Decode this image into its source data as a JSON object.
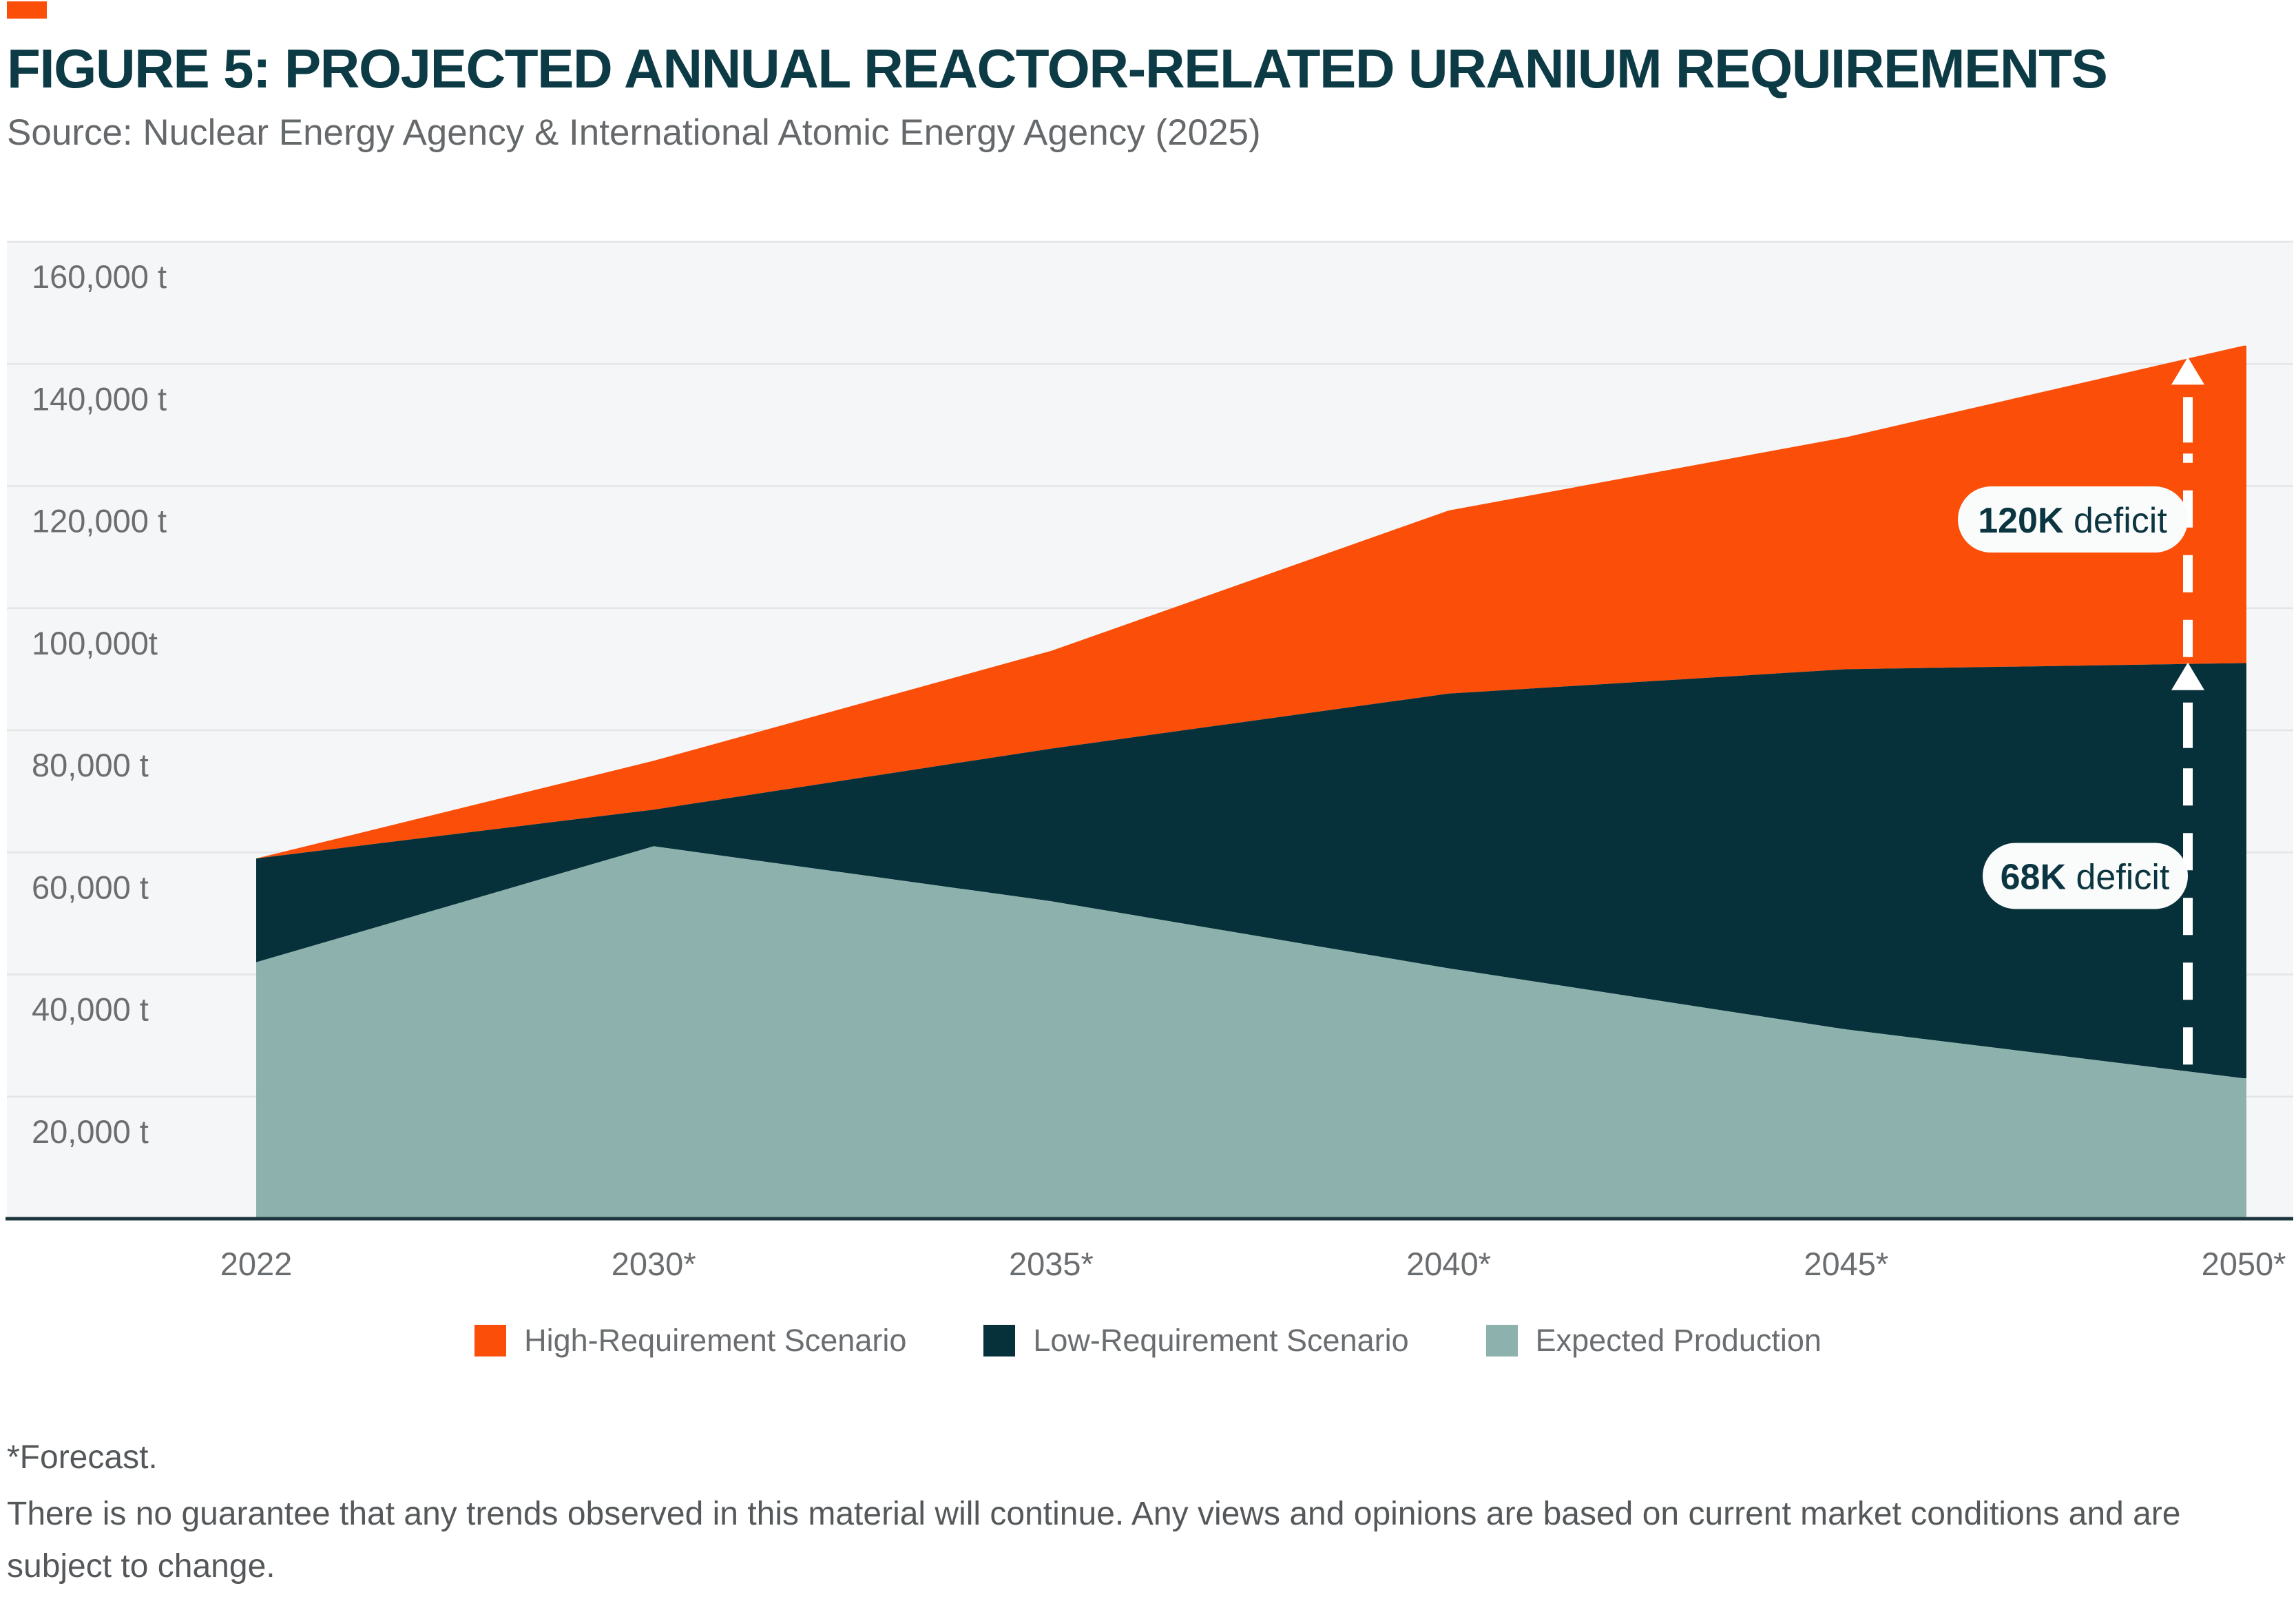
{
  "page": {
    "accent_color": "#FB4E09",
    "title": "FIGURE 5: PROJECTED ANNUAL REACTOR-RELATED URANIUM REQUIREMENTS",
    "source": "Source: Nuclear Energy Agency & International Atomic Energy Agency (2025)"
  },
  "chart_data": {
    "type": "area",
    "mode": "layered-bands",
    "unit": "tonnes of uranium per year",
    "x_categories": [
      "2022",
      "2030*",
      "2035*",
      "2040*",
      "2045*",
      "2050*"
    ],
    "series": [
      {
        "name": "High-Requirement Scenario",
        "color": "#FB4E09",
        "values": [
          59000,
          75000,
          93000,
          116000,
          128000,
          143000
        ]
      },
      {
        "name": "Low-Requirement Scenario",
        "color": "#07313A",
        "values": [
          59000,
          67000,
          77000,
          86000,
          90000,
          91000
        ]
      },
      {
        "name": "Expected Production",
        "color": "#8DB2AD",
        "values": [
          42000,
          61000,
          52000,
          41000,
          31000,
          23000
        ]
      }
    ],
    "ylim": [
      0,
      160000
    ],
    "ytick_step": 20000,
    "ytick_labels_bottom_up": [
      "20,000 t",
      "40,000 t",
      "60,000 t",
      "80,000 t",
      "100,000t",
      "120,000 t",
      "140,000 t",
      "160,000 t"
    ],
    "grid": "horizontal",
    "legend_position": "bottom",
    "annotations": [
      {
        "value": "120K",
        "label": "deficit",
        "from_series": "Low-Requirement Scenario",
        "to_series": "High-Requirement Scenario"
      },
      {
        "value": "68K",
        "label": "deficit",
        "from_series": "Expected Production",
        "to_series": "Low-Requirement Scenario"
      }
    ]
  },
  "footer": {
    "forecast_note": "*Forecast.",
    "disclaimer": "There is no guarantee that any trends observed in this material will continue. Any views and opinions are based on current market conditions and are subject to change."
  }
}
